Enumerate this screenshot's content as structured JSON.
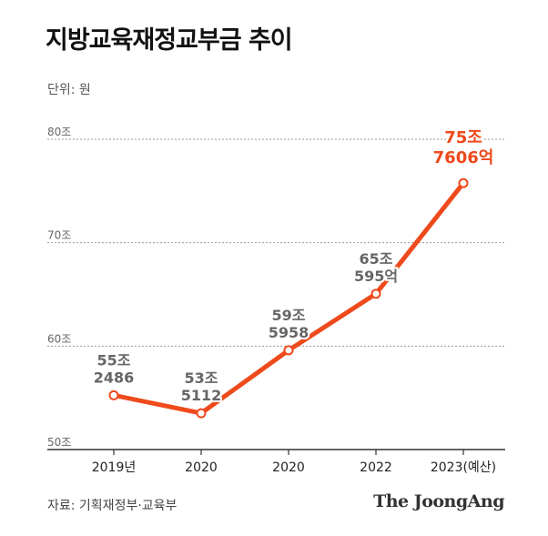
{
  "header": {
    "title": "지방교육재정교부금 추이",
    "unit": "단위: 원"
  },
  "footer": {
    "source": "자료: 기획재정부·교육부",
    "brand": "The JoongAng"
  },
  "colors": {
    "line": "#ee4a1c",
    "label": "#666666",
    "highlight": "#ee4a1c",
    "grid": "#999999",
    "axis": "#333333"
  },
  "chart_data": {
    "type": "line",
    "title": "지방교육재정교부금 추이",
    "xlabel": "",
    "ylabel": "",
    "ylim": [
      50,
      80
    ],
    "yticks": [
      50,
      60,
      70,
      80
    ],
    "ytick_labels": [
      "50조",
      "60조",
      "70조",
      "80조"
    ],
    "grid": "dotted horizontal",
    "categories": [
      "2019년",
      "2020",
      "2020",
      "2022",
      "2023(예산)"
    ],
    "values": [
      55.2486,
      53.5112,
      59.5958,
      65.0595,
      75.7606
    ],
    "data_labels": [
      [
        "55조",
        "2486"
      ],
      [
        "53조",
        "5112"
      ],
      [
        "59조",
        "5958"
      ],
      [
        "65조",
        "595억"
      ],
      [
        "75조",
        "7606억"
      ]
    ]
  }
}
